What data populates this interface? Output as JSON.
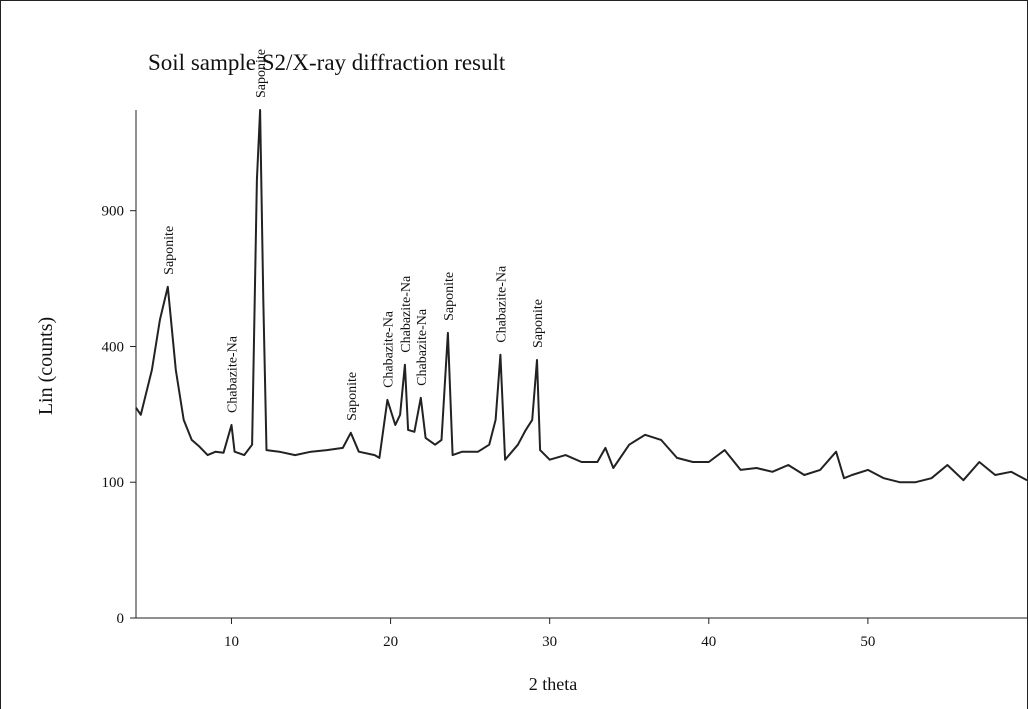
{
  "chart_data": {
    "type": "line",
    "title": "Soil sample S2/X-ray diffraction result",
    "x_label": "2 theta",
    "y_label": "Lin (counts)",
    "y_scale": "sqrt",
    "color": "#222222",
    "xlim": [
      4,
      60
    ],
    "ylim": [
      0,
      1400
    ],
    "xticks": [
      10,
      20,
      30,
      40,
      50
    ],
    "yticks": [
      0,
      100,
      400,
      900
    ],
    "x": [
      4,
      4.3,
      5,
      5.5,
      6,
      6.5,
      7,
      7.5,
      8,
      8.5,
      9,
      9.5,
      10,
      10.2,
      10.8,
      11.3,
      11.6,
      11.8,
      12,
      12.2,
      13,
      14,
      15,
      16,
      17,
      17.5,
      18,
      19,
      19.3,
      19.8,
      20.3,
      20.6,
      20.9,
      21.1,
      21.5,
      21.9,
      22.2,
      22.8,
      23.2,
      23.6,
      23.9,
      24.5,
      25.5,
      26.2,
      26.6,
      26.9,
      27.2,
      28,
      28.5,
      28.9,
      29.2,
      29.4,
      30,
      31,
      32,
      33,
      33.5,
      34,
      35,
      36,
      37,
      38,
      39,
      40,
      41,
      42,
      43,
      44,
      45,
      46,
      47,
      48,
      48.5,
      49,
      50,
      51,
      52,
      53,
      54,
      55,
      56,
      57,
      58,
      59,
      60
    ],
    "values": [
      240,
      224,
      334,
      482,
      595,
      334,
      213,
      172,
      159,
      144,
      150,
      148,
      202,
      150,
      144,
      163,
      1042,
      1400,
      549,
      153,
      150,
      144,
      150,
      153,
      157,
      186,
      150,
      144,
      139,
      258,
      202,
      224,
      348,
      192,
      188,
      263,
      176,
      163,
      172,
      441,
      144,
      150,
      150,
      163,
      213,
      376,
      136,
      163,
      192,
      213,
      361,
      153,
      136,
      144,
      132,
      132,
      157,
      122,
      163,
      182,
      172,
      139,
      132,
      132,
      153,
      119,
      122,
      116,
      127,
      111,
      119,
      150,
      106,
      111,
      119,
      106,
      100,
      100,
      106,
      127,
      103,
      132,
      111,
      116,
      103
    ],
    "annotations": [
      {
        "label": "Saponite",
        "x": 6
      },
      {
        "label": "Chabazite-Na",
        "x": 10
      },
      {
        "label": "Saponite",
        "x": 11.8
      },
      {
        "label": "Saponite",
        "x": 17.5
      },
      {
        "label": "Chabazite-Na",
        "x": 19.8
      },
      {
        "label": "Chabazite-Na",
        "x": 20.9
      },
      {
        "label": "Chabazite-Na",
        "x": 21.9
      },
      {
        "label": "Saponite",
        "x": 23.6
      },
      {
        "label": "Chabazite-Na",
        "x": 26.9
      },
      {
        "label": "Saponite",
        "x": 29.2
      }
    ]
  }
}
